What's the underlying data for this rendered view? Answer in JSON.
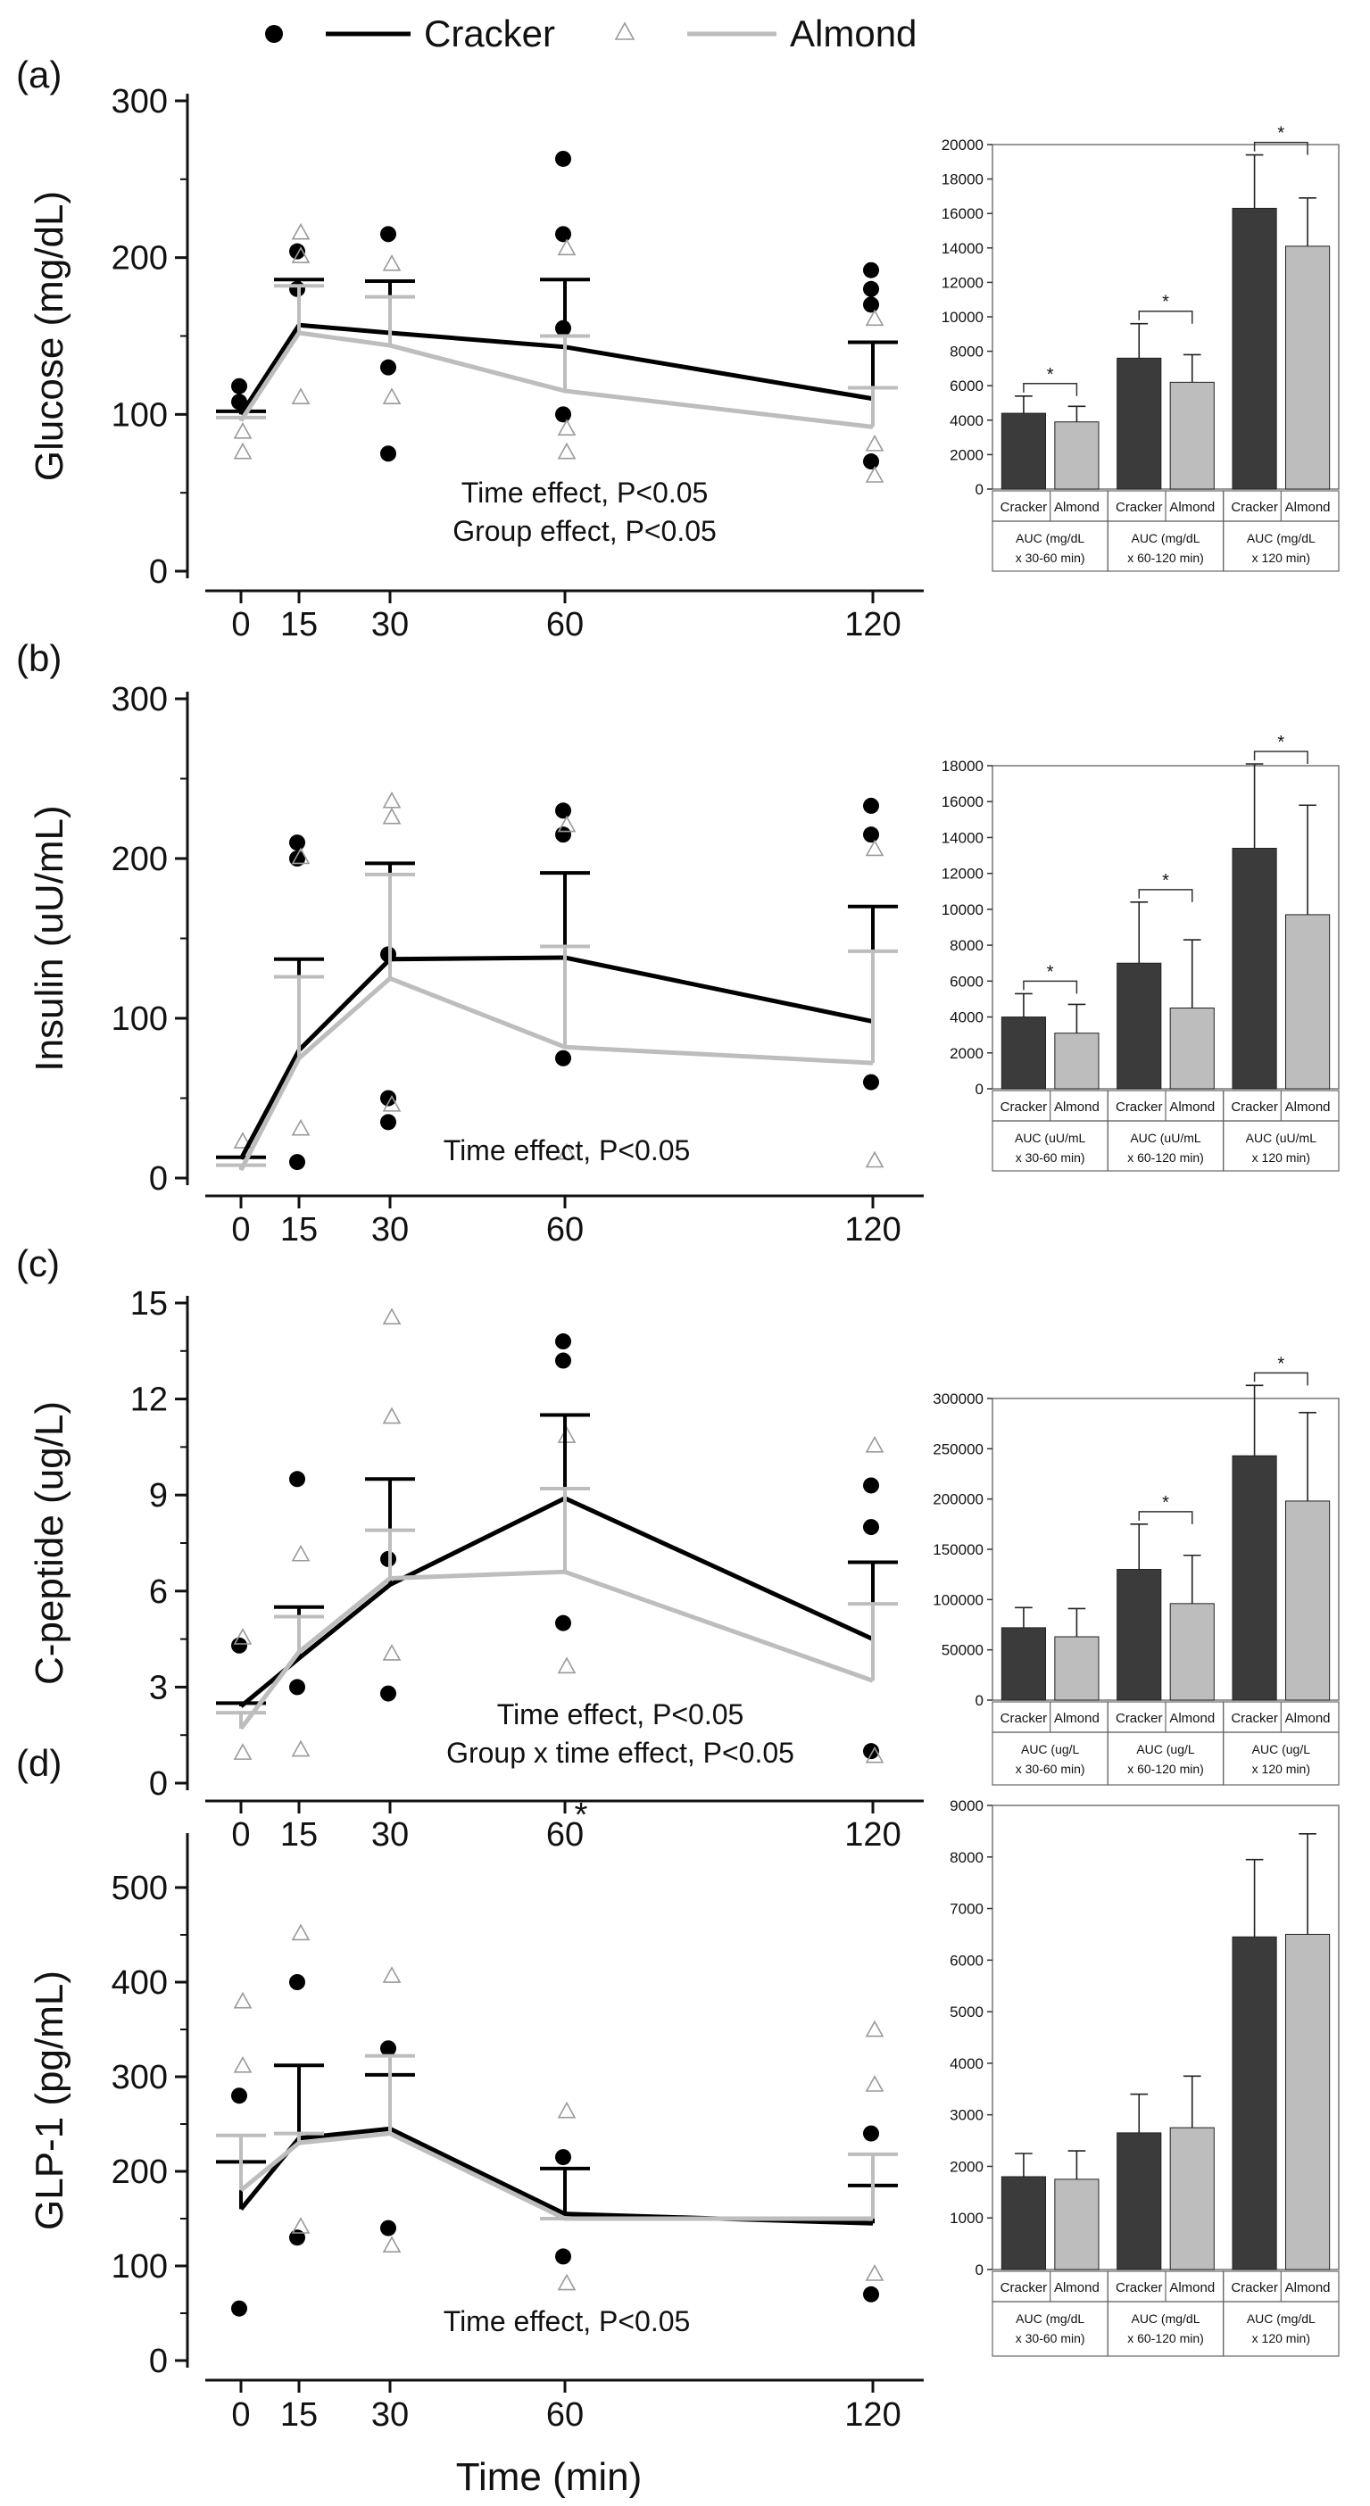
{
  "legend": {
    "series": [
      {
        "name": "Cracker",
        "color": "#000000",
        "marker": "circle"
      },
      {
        "name": "Almond",
        "color": "#bdbdbd",
        "marker": "triangle"
      }
    ]
  },
  "xlabel": "Time (min)",
  "colors": {
    "cracker_bar": "#3b3b3b",
    "almond_bar": "#bdbdbd",
    "cracker_line": "#000000",
    "almond_line": "#bdbdbd"
  },
  "chart_data": [
    {
      "type": "line",
      "panel": "(a)",
      "ylabel": "Glucose (mg/dL)",
      "x": [
        0,
        15,
        30,
        60,
        120
      ],
      "ylim": [
        0,
        300
      ],
      "yticks": [
        0,
        100,
        200,
        300
      ],
      "series": [
        {
          "name": "Cracker",
          "values": [
            100,
            157,
            152,
            143,
            110
          ],
          "upper": [
            102,
            186,
            185,
            186,
            146
          ],
          "points": [
            [
              0,
              118
            ],
            [
              0,
              108
            ],
            [
              15,
              204
            ],
            [
              15,
              180
            ],
            [
              30,
              215
            ],
            [
              30,
              75
            ],
            [
              30,
              130
            ],
            [
              60,
              263
            ],
            [
              60,
              215
            ],
            [
              60,
              155
            ],
            [
              60,
              100
            ],
            [
              120,
              192
            ],
            [
              120,
              180
            ],
            [
              120,
              170
            ],
            [
              120,
              70
            ]
          ]
        },
        {
          "name": "Almond",
          "values": [
            96,
            152,
            144,
            115,
            92
          ],
          "upper": [
            98,
            182,
            175,
            150,
            117
          ],
          "points": [
            [
              0,
              88
            ],
            [
              0,
              75
            ],
            [
              15,
              215
            ],
            [
              15,
              200
            ],
            [
              15,
              110
            ],
            [
              30,
              195
            ],
            [
              30,
              110
            ],
            [
              60,
              205
            ],
            [
              60,
              75
            ],
            [
              60,
              90
            ],
            [
              120,
              160
            ],
            [
              120,
              60
            ],
            [
              120,
              80
            ]
          ]
        }
      ],
      "annotations": [
        "Time effect, P<0.05",
        "Group effect, P<0.05"
      ]
    },
    {
      "type": "line",
      "panel": "(b)",
      "ylabel": "Insulin (uU/mL)",
      "x": [
        0,
        15,
        30,
        60,
        120
      ],
      "ylim": [
        0,
        300
      ],
      "yticks": [
        0,
        100,
        200,
        300
      ],
      "series": [
        {
          "name": "Cracker",
          "values": [
            12,
            80,
            137,
            138,
            98
          ],
          "upper": [
            13,
            137,
            197,
            191,
            170
          ],
          "points": [
            [
              15,
              210
            ],
            [
              15,
              200
            ],
            [
              15,
              10
            ],
            [
              30,
              35
            ],
            [
              30,
              50
            ],
            [
              30,
              140
            ],
            [
              60,
              230
            ],
            [
              60,
              215
            ],
            [
              60,
              75
            ],
            [
              120,
              233
            ],
            [
              120,
              215
            ],
            [
              120,
              60
            ]
          ]
        },
        {
          "name": "Almond",
          "values": [
            5,
            75,
            125,
            82,
            72
          ],
          "upper": [
            8,
            126,
            190,
            145,
            142
          ],
          "points": [
            [
              0,
              22
            ],
            [
              15,
              200
            ],
            [
              15,
              30
            ],
            [
              30,
              235
            ],
            [
              30,
              225
            ],
            [
              30,
              45
            ],
            [
              60,
              220
            ],
            [
              60,
              15
            ],
            [
              120,
              205
            ],
            [
              120,
              10
            ]
          ]
        }
      ],
      "annotations": [
        "Time effect, P<0.05"
      ]
    },
    {
      "type": "line",
      "panel": "(c)",
      "ylabel": "C-peptide (ug/L)",
      "x": [
        0,
        15,
        30,
        60,
        120
      ],
      "xticklabels": [
        "0",
        "15",
        "30",
        "60",
        "120"
      ],
      "x_marker": "*",
      "ylim": [
        0,
        15
      ],
      "yticks": [
        0,
        3,
        6,
        9,
        12,
        15
      ],
      "series": [
        {
          "name": "Cracker",
          "values": [
            2.4,
            3.9,
            6.2,
            8.9,
            4.5
          ],
          "upper": [
            2.5,
            5.5,
            9.5,
            11.5,
            6.9
          ],
          "points": [
            [
              0,
              4.3
            ],
            [
              15,
              9.5
            ],
            [
              15,
              3.0
            ],
            [
              30,
              2.8
            ],
            [
              30,
              7.0
            ],
            [
              60,
              13.8
            ],
            [
              60,
              13.2
            ],
            [
              60,
              5.0
            ],
            [
              120,
              9.3
            ],
            [
              120,
              8.0
            ],
            [
              120,
              1.0
            ]
          ]
        },
        {
          "name": "Almond",
          "values": [
            1.7,
            4.1,
            6.4,
            6.6,
            3.2
          ],
          "upper": [
            2.2,
            5.2,
            7.9,
            9.2,
            5.6
          ],
          "points": [
            [
              0,
              4.5
            ],
            [
              0,
              0.9
            ],
            [
              15,
              7.1
            ],
            [
              15,
              1.0
            ],
            [
              30,
              14.5
            ],
            [
              30,
              11.4
            ],
            [
              30,
              4.0
            ],
            [
              60,
              10.8
            ],
            [
              60,
              3.6
            ],
            [
              120,
              10.5
            ],
            [
              120,
              0.8
            ]
          ]
        }
      ],
      "annotations": [
        "Time effect, P<0.05",
        "Group x time effect, P<0.05"
      ]
    },
    {
      "type": "line",
      "panel": "(d)",
      "ylabel": "GLP-1 (pg/mL)",
      "x": [
        0,
        15,
        30,
        60,
        120
      ],
      "ylim": [
        0,
        550
      ],
      "yticks": [
        0,
        100,
        200,
        300,
        400,
        500
      ],
      "series": [
        {
          "name": "Cracker",
          "values": [
            160,
            235,
            245,
            155,
            145
          ],
          "upper": [
            210,
            312,
            302,
            203,
            185
          ],
          "points": [
            [
              0,
              55
            ],
            [
              0,
              280
            ],
            [
              15,
              400
            ],
            [
              15,
              130
            ],
            [
              30,
              330
            ],
            [
              30,
              140
            ],
            [
              60,
              215
            ],
            [
              60,
              110
            ],
            [
              120,
              240
            ],
            [
              120,
              70
            ]
          ]
        },
        {
          "name": "Almond",
          "values": [
            180,
            230,
            240,
            150,
            150
          ],
          "upper": [
            238,
            240,
            322,
            150,
            218
          ],
          "points": [
            [
              0,
              378
            ],
            [
              0,
              310
            ],
            [
              15,
              450
            ],
            [
              15,
              140
            ],
            [
              30,
              405
            ],
            [
              30,
              120
            ],
            [
              60,
              262
            ],
            [
              60,
              80
            ],
            [
              120,
              348
            ],
            [
              120,
              290
            ],
            [
              120,
              90
            ]
          ]
        }
      ],
      "annotations": [
        "Time effect, P<0.05"
      ]
    },
    {
      "type": "bar",
      "panel": "(a) AUC",
      "ylim": [
        0,
        20000
      ],
      "yticks": [
        0,
        2000,
        4000,
        6000,
        8000,
        10000,
        12000,
        14000,
        16000,
        18000,
        20000
      ],
      "groups": [
        "AUC (mg/dL x 30-60 min)",
        "AUC (mg/dL x 60-120 min)",
        "AUC (mg/dL x 120 min)"
      ],
      "bar_labels": [
        "Cracker",
        "Almond"
      ],
      "series": [
        {
          "name": "Cracker",
          "values": [
            4400,
            7600,
            16300
          ],
          "err": [
            1000,
            2000,
            3100
          ]
        },
        {
          "name": "Almond",
          "values": [
            3900,
            6200,
            14100
          ],
          "err": [
            900,
            1600,
            2800
          ]
        }
      ],
      "significance": [
        true,
        true,
        true
      ]
    },
    {
      "type": "bar",
      "panel": "(b) AUC",
      "ylim": [
        0,
        18000
      ],
      "yticks": [
        0,
        2000,
        4000,
        6000,
        8000,
        10000,
        12000,
        14000,
        16000,
        18000
      ],
      "groups": [
        "AUC (uU/mL x 30-60 min)",
        "AUC (uU/mL x 60-120 min)",
        "AUC (uU/mL x 120 min)"
      ],
      "bar_labels": [
        "Cracker",
        "Almond"
      ],
      "series": [
        {
          "name": "Cracker",
          "values": [
            4000,
            7000,
            13400
          ],
          "err": [
            1300,
            3400,
            4700
          ]
        },
        {
          "name": "Almond",
          "values": [
            3100,
            4500,
            9700
          ],
          "err": [
            1600,
            3800,
            6100
          ]
        }
      ],
      "significance": [
        true,
        true,
        true
      ]
    },
    {
      "type": "bar",
      "panel": "(c) AUC",
      "ylim": [
        0,
        300000
      ],
      "yticks": [
        0,
        50000,
        100000,
        150000,
        200000,
        250000,
        300000
      ],
      "groups": [
        "AUC (ug/L x 30-60 min)",
        "AUC (ug/L x 60-120 min)",
        "AUC (ug/L x 120 min)"
      ],
      "bar_labels": [
        "Cracker",
        "Almond"
      ],
      "series": [
        {
          "name": "Cracker",
          "values": [
            72000,
            130000,
            243000
          ],
          "err": [
            20000,
            45000,
            70000
          ]
        },
        {
          "name": "Almond",
          "values": [
            63000,
            96000,
            198000
          ],
          "err": [
            28000,
            48000,
            88000
          ]
        }
      ],
      "significance": [
        false,
        true,
        true
      ]
    },
    {
      "type": "bar",
      "panel": "(d) AUC",
      "ylim": [
        0,
        9000
      ],
      "yticks": [
        0,
        1000,
        2000,
        3000,
        4000,
        5000,
        6000,
        7000,
        8000,
        9000
      ],
      "groups": [
        "AUC (mg/dL x 30-60 min)",
        "AUC (mg/dL x 60-120 min)",
        "AUC (mg/dL x 120 min)"
      ],
      "bar_labels": [
        "Cracker",
        "Almond"
      ],
      "series": [
        {
          "name": "Cracker",
          "values": [
            1800,
            2650,
            6450
          ],
          "err": [
            450,
            750,
            1500
          ]
        },
        {
          "name": "Almond",
          "values": [
            1750,
            2750,
            6500
          ],
          "err": [
            550,
            1000,
            1950
          ]
        }
      ],
      "significance": [
        false,
        false,
        false
      ]
    }
  ]
}
